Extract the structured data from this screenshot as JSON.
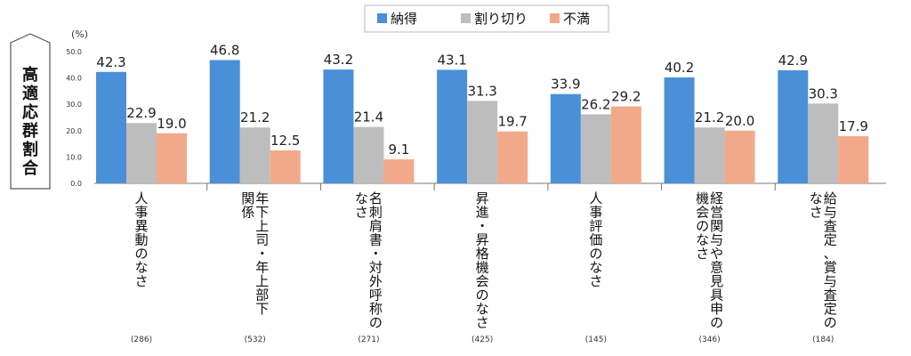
{
  "chart_data": {
    "type": "bar",
    "ylabel": "高適応群割合",
    "unit": "(%)",
    "ylim": [
      0,
      50
    ],
    "yticks": [
      "0.0",
      "10.0",
      "20.0",
      "30.0",
      "40.0",
      "50.0"
    ],
    "legend_position": "top-center",
    "grid": false,
    "categories": [
      [
        "人事異動のなさ"
      ],
      [
        "年下上司・年上部下",
        "関係"
      ],
      [
        "名刺肩書・対外呼称の",
        "なさ"
      ],
      [
        "昇進・昇格機会のなさ"
      ],
      [
        "人事評価のなさ"
      ],
      [
        "経営関与や意見具申の",
        "機会のなさ"
      ],
      [
        "給与査定、賞与査定の",
        "なさ"
      ]
    ],
    "sample_sizes": [
      "(286)",
      "(532)",
      "(271)",
      "(425)",
      "(145)",
      "(346)",
      "(184)"
    ],
    "series": [
      {
        "name": "納得",
        "color": "#4A90D9",
        "values": [
          42.3,
          46.8,
          43.2,
          43.1,
          33.9,
          40.2,
          42.9
        ]
      },
      {
        "name": "割り切り",
        "color": "#BDBDBD",
        "values": [
          22.9,
          21.2,
          21.4,
          31.3,
          26.2,
          21.2,
          30.3
        ]
      },
      {
        "name": "不満",
        "color": "#F2A98A",
        "values": [
          19.0,
          12.5,
          9.1,
          19.7,
          29.2,
          20.0,
          17.9
        ]
      }
    ]
  }
}
